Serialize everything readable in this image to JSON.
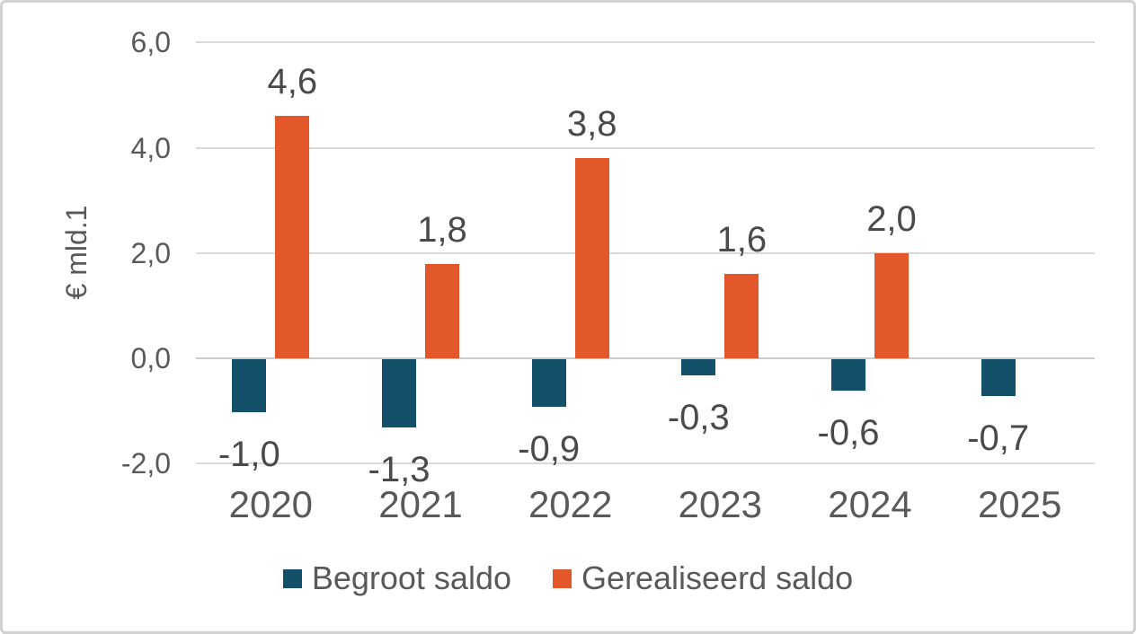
{
  "chart_data": {
    "type": "bar",
    "title": "",
    "ylabel": "€ mld.1",
    "xlabel": "",
    "categories": [
      "2020",
      "2021",
      "2022",
      "2023",
      "2024",
      "2025"
    ],
    "series": [
      {
        "name": "Begroot saldo",
        "color": "#15506b",
        "values": [
          -1.0,
          -1.3,
          -0.9,
          -0.3,
          -0.6,
          -0.7
        ],
        "labels": [
          "-1,0",
          "-1,3",
          "-0,9",
          "-0,3",
          "-0,6",
          "-0,7"
        ]
      },
      {
        "name": "Gerealiseerd saldo",
        "color": "#e2582a",
        "values": [
          4.6,
          1.8,
          3.8,
          1.6,
          2.0,
          null
        ],
        "labels": [
          "4,6",
          "1,8",
          "3,8",
          "1,6",
          "2,0",
          null
        ]
      }
    ],
    "y_ticks": [
      {
        "value": 6,
        "label": "6,0"
      },
      {
        "value": 4,
        "label": "4,0"
      },
      {
        "value": 2,
        "label": "2,0"
      },
      {
        "value": 0,
        "label": "0,0"
      },
      {
        "value": -2,
        "label": "-2,0"
      }
    ],
    "ylim": [
      -2,
      6
    ],
    "grid": true,
    "gridline_color": "#d9d9d9",
    "zero_line_color": "#cccccc",
    "legend_position": "bottom"
  }
}
